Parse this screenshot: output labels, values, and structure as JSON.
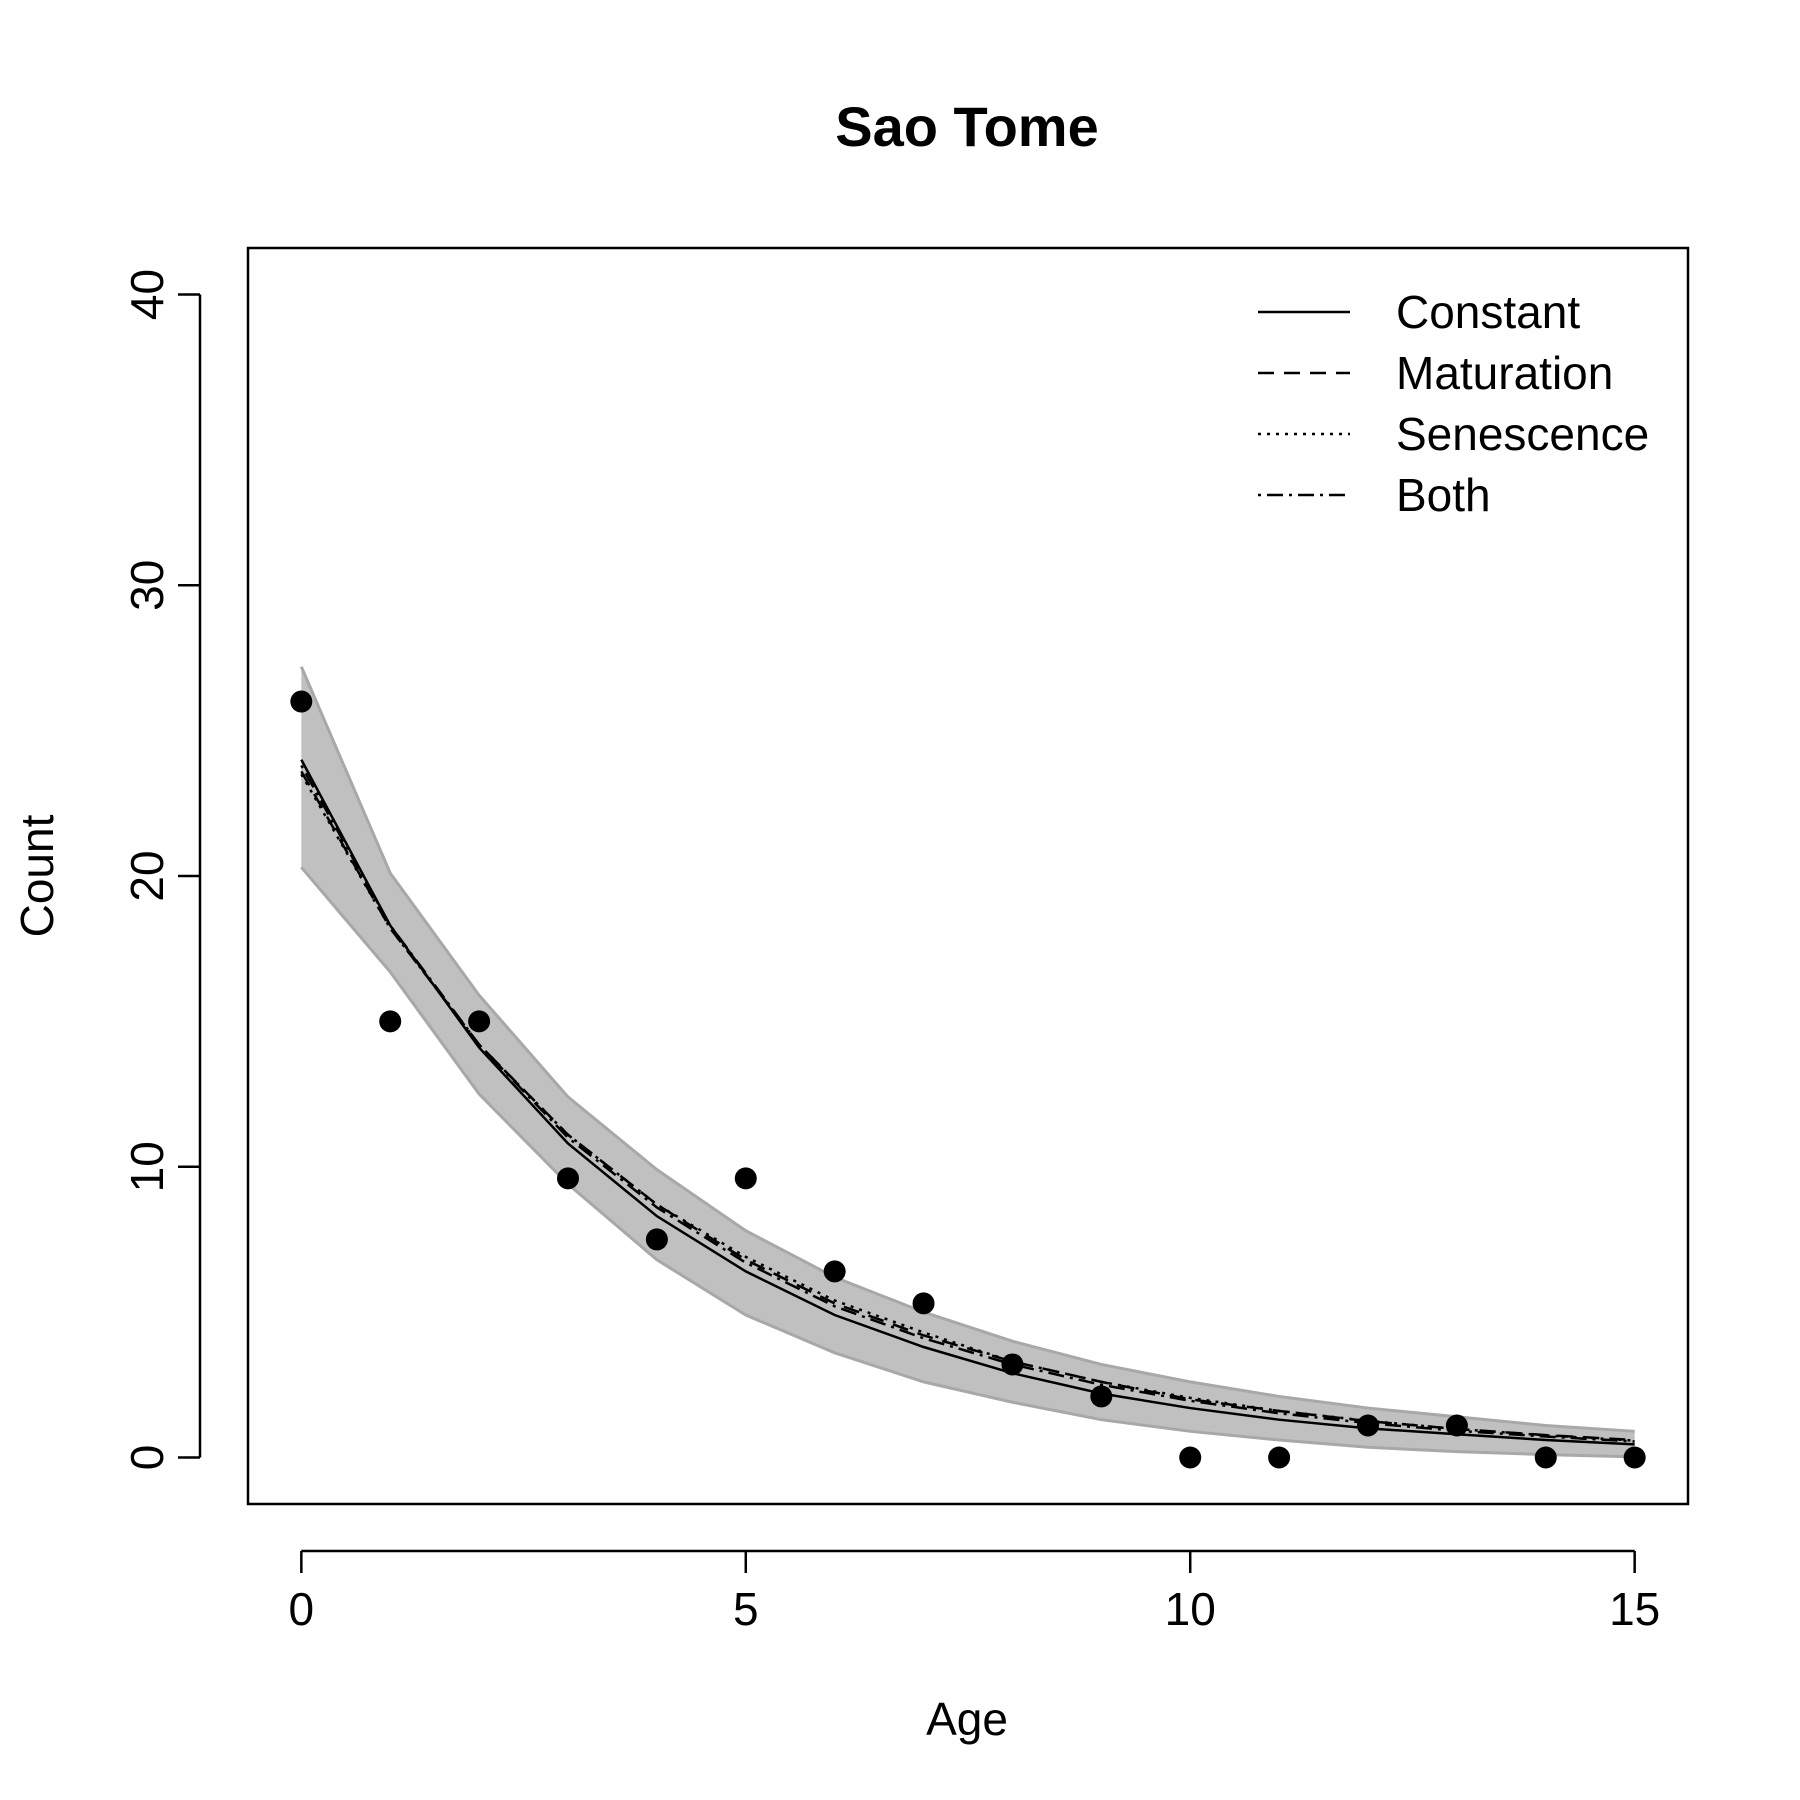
{
  "chart_data": {
    "type": "line",
    "title": "Sao Tome",
    "xlabel": "Age",
    "ylabel": "Count",
    "xlim": [
      -0.6,
      15.6
    ],
    "ylim": [
      -1.6,
      41.6
    ],
    "xticks": [
      0,
      5,
      10,
      15
    ],
    "yticks": [
      0,
      10,
      20,
      30,
      40
    ],
    "grid": false,
    "legend_position": "top-right",
    "points": {
      "x": [
        0,
        1,
        2,
        3,
        4,
        5,
        6,
        7,
        8,
        9,
        10,
        11,
        12,
        13,
        14,
        15
      ],
      "y": [
        26,
        15,
        15,
        9.6,
        7.5,
        9.6,
        6.4,
        5.3,
        3.2,
        2.1,
        0,
        0,
        1.1,
        1.1,
        0,
        0
      ]
    },
    "series": [
      {
        "name": "Constant",
        "dash": "solid",
        "x": [
          0,
          1,
          2,
          3,
          4,
          5,
          6,
          7,
          8,
          9,
          10,
          11,
          12,
          13,
          14,
          15
        ],
        "y": [
          24.0,
          18.3,
          14.1,
          10.8,
          8.3,
          6.4,
          4.9,
          3.8,
          2.9,
          2.2,
          1.7,
          1.3,
          1.0,
          0.8,
          0.6,
          0.45
        ]
      },
      {
        "name": "Maturation",
        "dash": "dashed",
        "x": [
          0,
          1,
          2,
          3,
          4,
          5,
          6,
          7,
          8,
          9,
          10,
          11,
          12,
          13,
          14,
          15
        ],
        "y": [
          23.6,
          18.2,
          14.2,
          11.1,
          8.7,
          6.8,
          5.3,
          4.2,
          3.3,
          2.6,
          2.0,
          1.6,
          1.25,
          0.98,
          0.77,
          0.6
        ]
      },
      {
        "name": "Senescence",
        "dash": "dotted",
        "x": [
          0,
          1,
          2,
          3,
          4,
          5,
          6,
          7,
          8,
          9,
          10,
          11,
          12,
          13,
          14,
          15
        ],
        "y": [
          23.5,
          18.2,
          14.2,
          11.1,
          8.7,
          6.9,
          5.4,
          4.3,
          3.3,
          2.6,
          2.05,
          1.6,
          1.26,
          0.98,
          0.76,
          0.58
        ]
      },
      {
        "name": "Both",
        "dash": "dotdash",
        "x": [
          0,
          1,
          2,
          3,
          4,
          5,
          6,
          7,
          8,
          9,
          10,
          11,
          12,
          13,
          14,
          15
        ],
        "y": [
          23.8,
          18.3,
          14.2,
          11.0,
          8.6,
          6.7,
          5.2,
          4.1,
          3.2,
          2.5,
          1.95,
          1.52,
          1.18,
          0.92,
          0.72,
          0.55
        ]
      }
    ],
    "confidence_band": {
      "x": [
        0,
        1,
        2,
        3,
        4,
        5,
        6,
        7,
        8,
        9,
        10,
        11,
        12,
        13,
        14,
        15
      ],
      "upper": [
        27.2,
        20.1,
        15.9,
        12.4,
        9.9,
        7.8,
        6.2,
        5.0,
        4.0,
        3.2,
        2.6,
        2.1,
        1.7,
        1.4,
        1.1,
        0.9
      ],
      "lower": [
        20.3,
        16.7,
        12.5,
        9.4,
        6.8,
        4.9,
        3.6,
        2.6,
        1.9,
        1.3,
        0.9,
        0.6,
        0.35,
        0.2,
        0.1,
        0.02
      ]
    },
    "colors": {
      "points": "#000000",
      "lines": "#000000",
      "band": "#c0c0c0",
      "band_edges": "#a8a8a8"
    }
  }
}
